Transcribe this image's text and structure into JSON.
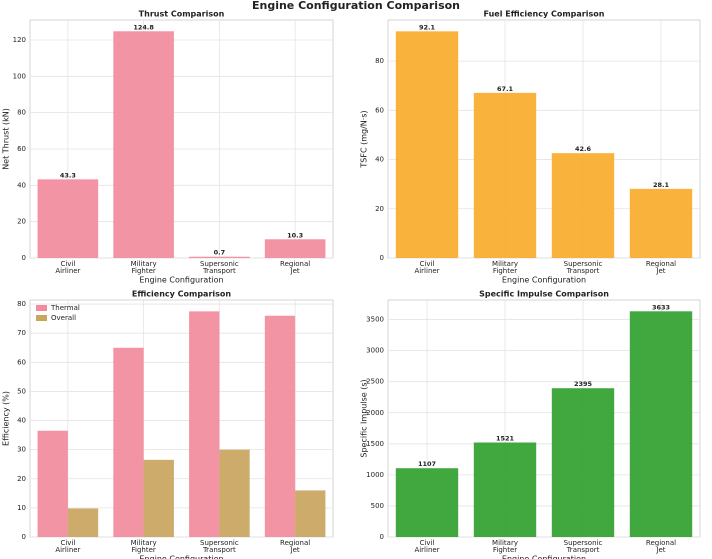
{
  "title": "Engine Configuration Comparison",
  "chart_data": [
    {
      "type": "bar",
      "title": "Thrust Comparison",
      "xlabel": "Engine Configuration",
      "ylabel": "Net Thrust (kN)",
      "categories": [
        "Civil Airliner",
        "Military Fighter",
        "Supersonic Transport",
        "Regional Jet"
      ],
      "values": [
        43.3,
        124.8,
        0.7,
        10.3
      ],
      "color": "#f28b9c",
      "show_values": true,
      "ylim": [
        0,
        131
      ],
      "yticks": [
        0,
        20,
        40,
        60,
        80,
        100,
        120
      ],
      "grid": true
    },
    {
      "type": "bar",
      "title": "Fuel Efficiency Comparison",
      "xlabel": "Engine Configuration",
      "ylabel": "TSFC (mg/N·s)",
      "categories": [
        "Civil Airliner",
        "Military Fighter",
        "Supersonic Transport",
        "Regional Jet"
      ],
      "values": [
        92.1,
        67.1,
        42.6,
        28.1
      ],
      "color": "#f8ad2d",
      "show_values": true,
      "ylim": [
        0,
        96.7
      ],
      "yticks": [
        0,
        20,
        40,
        60,
        80
      ],
      "grid": true
    },
    {
      "type": "bar",
      "title": "Efficiency Comparison",
      "xlabel": "Engine Configuration",
      "ylabel": "Efficiency (%)",
      "categories": [
        "Civil Airliner",
        "Military Fighter",
        "Supersonic Transport",
        "Regional Jet"
      ],
      "series": [
        {
          "name": "Thermal",
          "color": "#f28b9c",
          "values": [
            36.5,
            65,
            77.5,
            76
          ]
        },
        {
          "name": "Overall",
          "color": "#c9a55e",
          "values": [
            9.8,
            26.5,
            30,
            16
          ]
        }
      ],
      "legend": "upper left",
      "ylim": [
        0,
        81.4
      ],
      "yticks": [
        0,
        10,
        20,
        30,
        40,
        50,
        60,
        70,
        80
      ],
      "grid": true
    },
    {
      "type": "bar",
      "title": "Specific Impulse Comparison",
      "xlabel": "Engine Configuration",
      "ylabel": "Specific Impulse (s)",
      "categories": [
        "Civil Airliner",
        "Military Fighter",
        "Supersonic Transport",
        "Regional Jet"
      ],
      "values": [
        1107,
        1521,
        2395,
        3633
      ],
      "color": "#31a02f",
      "show_values": true,
      "ylim": [
        0,
        3815
      ],
      "yticks": [
        0,
        500,
        1000,
        1500,
        2000,
        2500,
        3000,
        3500
      ],
      "grid": true
    }
  ]
}
